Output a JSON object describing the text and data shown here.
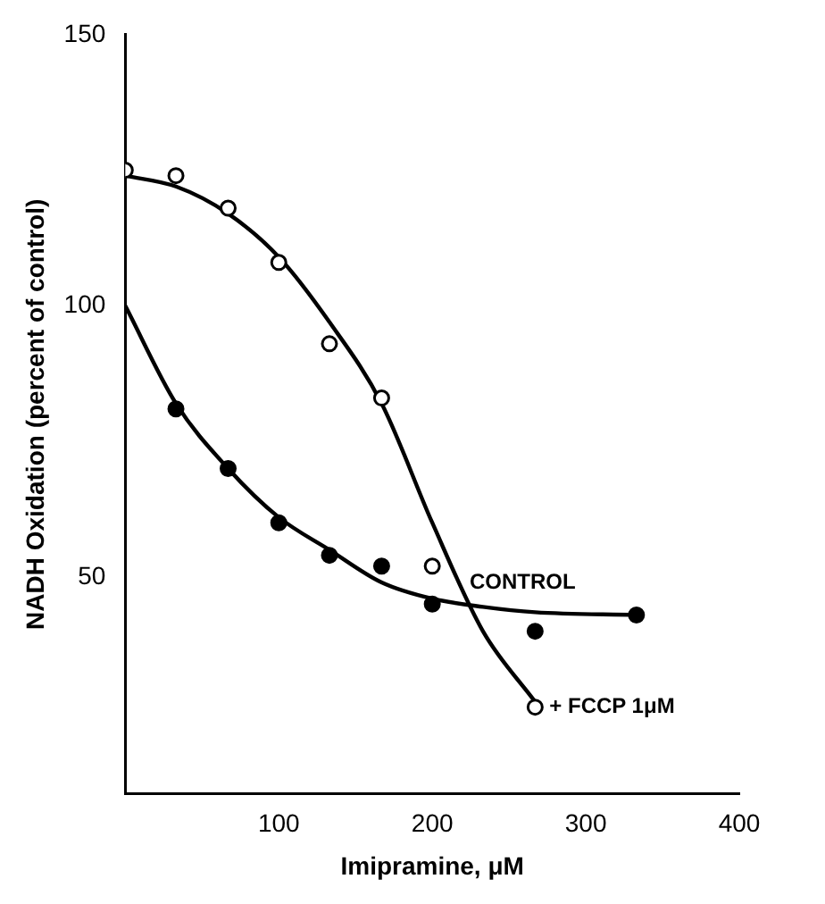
{
  "chart_data": {
    "type": "scatter",
    "xlabel": "Imipramine, μM",
    "ylabel": "NADH Oxidation (percent of control)",
    "xlim": [
      0,
      400
    ],
    "ylim": [
      10,
      150
    ],
    "xticks": [
      100,
      200,
      300,
      400
    ],
    "yticks": [
      50,
      100,
      150
    ],
    "grid": false,
    "legend": false,
    "series": [
      {
        "marker": "circle",
        "color": "#ffffff",
        "x": [
          0,
          33,
          67,
          100,
          133,
          167,
          200,
          267
        ],
        "values": [
          125,
          124,
          118,
          108,
          93,
          83,
          52,
          26
        ]
      },
      {
        "marker": "circle",
        "color": "#000000",
        "x": [
          33,
          67,
          100,
          133,
          167,
          200,
          267,
          333
        ],
        "values": [
          81,
          70,
          60,
          54,
          52,
          45,
          40,
          43
        ]
      },
      {
        "type": "line",
        "marker": "none",
        "color": "#000000",
        "x": [
          0,
          33,
          67,
          100,
          133,
          167,
          200,
          233,
          267
        ],
        "values": [
          124,
          122,
          117,
          109,
          97,
          82,
          60,
          40,
          27
        ]
      },
      {
        "type": "line",
        "marker": "none",
        "color": "#000000",
        "x": [
          0,
          33,
          67,
          100,
          133,
          167,
          200,
          233,
          267,
          333
        ],
        "values": [
          100,
          82,
          70,
          61,
          55,
          49,
          46,
          44.5,
          43.5,
          43
        ]
      }
    ],
    "annotations": [
      {
        "text": "CONTROL",
        "x": 215,
        "y": 49
      },
      {
        "text": "+ FCCP 1μM",
        "x": 267,
        "y": 26
      }
    ]
  }
}
